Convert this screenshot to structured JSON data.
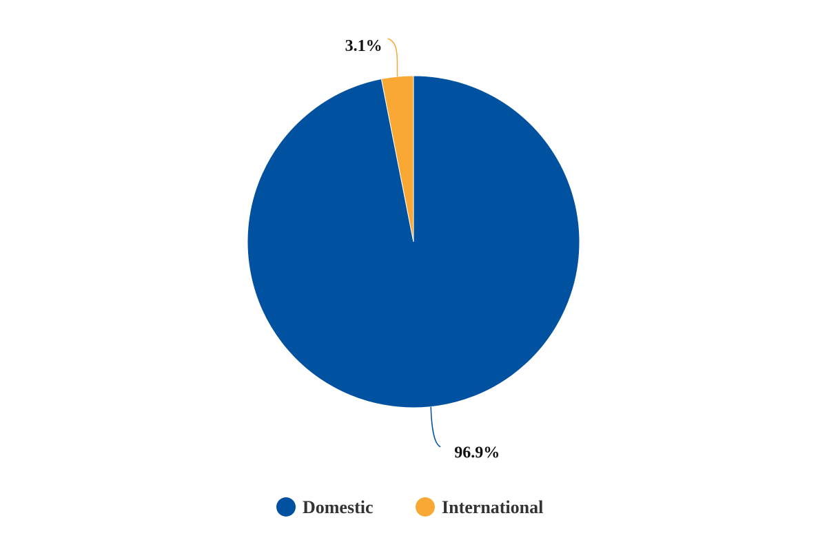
{
  "chart_data": {
    "type": "pie",
    "categories": [
      "Domestic",
      "International"
    ],
    "values": [
      96.9,
      3.1
    ],
    "value_labels": [
      "96.9%",
      "3.1%"
    ],
    "colors": [
      "#0052a0",
      "#f8a833"
    ],
    "legend": {
      "placement": "bottom",
      "entries": [
        "Domestic",
        "International"
      ]
    }
  }
}
